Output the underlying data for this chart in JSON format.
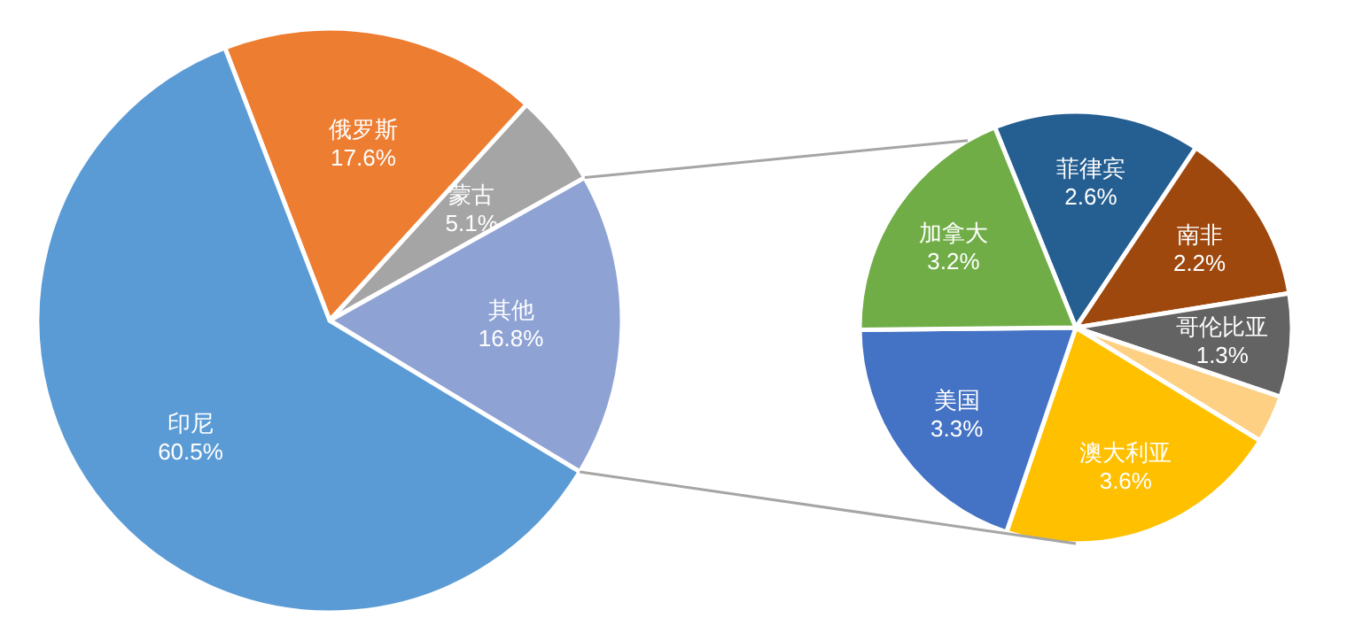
{
  "chart_data": [
    {
      "type": "pie",
      "categories": [
        "俄罗斯",
        "蒙古",
        "其他",
        "印尼"
      ],
      "values": [
        17.6,
        5.1,
        16.8,
        60.5
      ],
      "value_labels": [
        "17.6%",
        "5.1%",
        "16.8%",
        "60.5%"
      ],
      "colors": [
        "#ed7d31",
        "#a5a5a5",
        "#8fa2d4",
        "#5b9bd5"
      ]
    },
    {
      "type": "pie",
      "categories": [
        "菲律宾",
        "南非",
        "哥伦比亚",
        null,
        "澳大利亚",
        "美国",
        "加拿大"
      ],
      "values": [
        2.6,
        2.2,
        1.3,
        0.6,
        3.6,
        3.3,
        3.2
      ],
      "value_labels": [
        "2.6%",
        "2.2%",
        "1.3%",
        null,
        "3.6%",
        "3.3%",
        "3.2%"
      ],
      "colors": [
        "#255e91",
        "#9e480e",
        "#636363",
        "#fdd083",
        "#ffc000",
        "#4472c4",
        "#70ad47"
      ]
    }
  ]
}
